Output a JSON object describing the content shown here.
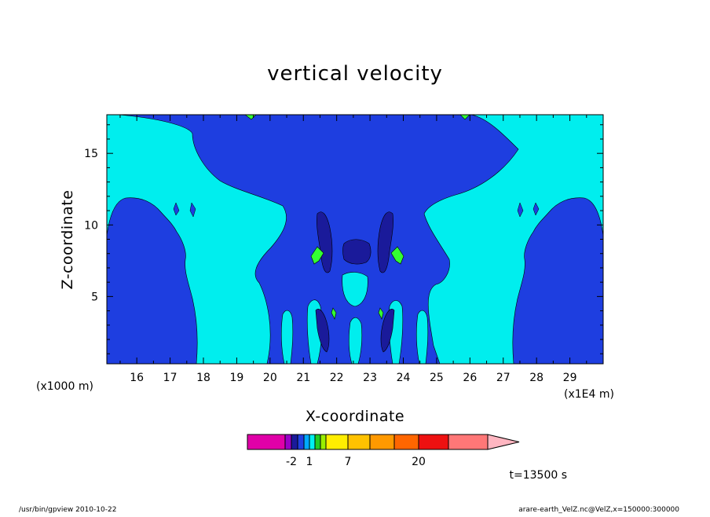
{
  "chart_data": {
    "type": "heatmap",
    "title": "vertical velocity",
    "xlabel": "X-coordinate",
    "ylabel": "Z-coordinate",
    "x_unit_left": "(x1000 m)",
    "x_unit_right": "(x1E4 m)",
    "x_ticks": [
      "16",
      "17",
      "18",
      "19",
      "20",
      "21",
      "22",
      "23",
      "24",
      "25",
      "26",
      "27",
      "28",
      "29"
    ],
    "x_tick_values": [
      16,
      17,
      18,
      19,
      20,
      21,
      22,
      23,
      24,
      25,
      26,
      27,
      28,
      29
    ],
    "xlim": [
      15.1,
      30.0
    ],
    "y_ticks": [
      "5",
      "10",
      "15"
    ],
    "y_tick_values": [
      5,
      10,
      15
    ],
    "ylim": [
      0.3,
      17.7
    ],
    "colorbar": {
      "labels": [
        "-2",
        "1",
        "7",
        "20"
      ],
      "label_values": [
        -2,
        1,
        7,
        20
      ],
      "colors": [
        "#e000a8",
        "#9900c8",
        "#1a1a9a",
        "#1f3fe0",
        "#00a8ff",
        "#00f0f0",
        "#22cc22",
        "#99ee00",
        "#ffee00",
        "#ffc200",
        "#ff9900",
        "#ff6600",
        "#ee1111",
        "#ff7777",
        "#ffb6c1"
      ],
      "extend": "max"
    },
    "time_label": "t=13500 s",
    "footer_left": "/usr/bin/gpview  2010-10-22",
    "footer_right": "arare-earth_VelZ.nc@VelZ,x=150000:300000",
    "field_colors": {
      "background": "#00eeee",
      "negative": "#1e3ee0",
      "strong_negative": "#1a1a9a",
      "positive": "#33ff33"
    }
  }
}
